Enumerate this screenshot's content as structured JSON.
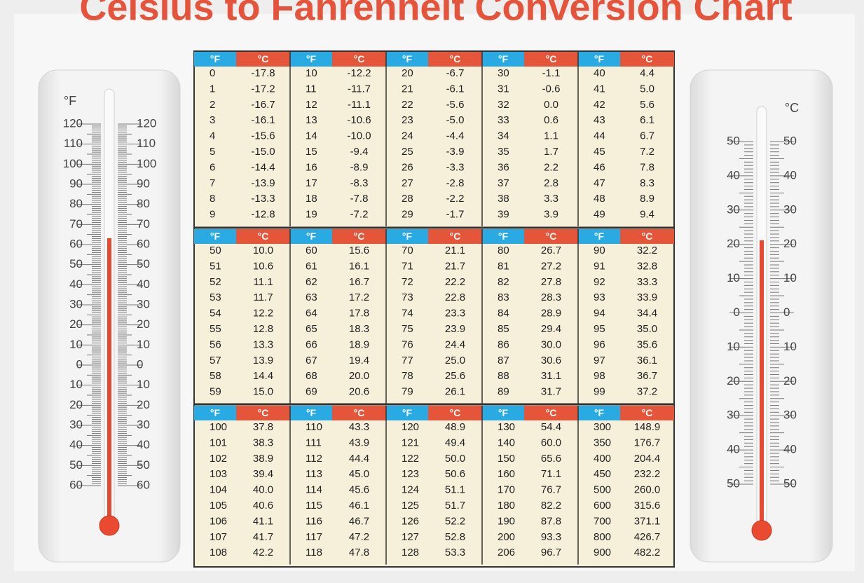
{
  "title": "Celsius to Fahrenheit Conversion Chart",
  "thermometers": {
    "fahrenheit": {
      "unit": "°F",
      "labels": [
        "120",
        "110",
        "100",
        "90",
        "80",
        "70",
        "60",
        "50",
        "40",
        "30",
        "20",
        "10",
        "0",
        "10",
        "20",
        "30",
        "40",
        "50",
        "60"
      ]
    },
    "celsius": {
      "unit": "°C",
      "labels": [
        "50",
        "40",
        "30",
        "20",
        "10",
        "0",
        "10",
        "20",
        "30",
        "40",
        "50"
      ]
    }
  },
  "table": {
    "header_f": "°F",
    "header_c": "°C",
    "sections": [
      {
        "groups": [
          {
            "rows": [
              [
                "0",
                "-17.8"
              ],
              [
                "1",
                "-17.2"
              ],
              [
                "2",
                "-16.7"
              ],
              [
                "3",
                "-16.1"
              ],
              [
                "4",
                "-15.6"
              ],
              [
                "5",
                "-15.0"
              ],
              [
                "6",
                "-14.4"
              ],
              [
                "7",
                "-13.9"
              ],
              [
                "8",
                "-13.3"
              ],
              [
                "9",
                "-12.8"
              ]
            ]
          },
          {
            "rows": [
              [
                "10",
                "-12.2"
              ],
              [
                "11",
                "-11.7"
              ],
              [
                "12",
                "-11.1"
              ],
              [
                "13",
                "-10.6"
              ],
              [
                "14",
                "-10.0"
              ],
              [
                "15",
                "-9.4"
              ],
              [
                "16",
                "-8.9"
              ],
              [
                "17",
                "-8.3"
              ],
              [
                "18",
                "-7.8"
              ],
              [
                "19",
                "-7.2"
              ]
            ]
          },
          {
            "rows": [
              [
                "20",
                "-6.7"
              ],
              [
                "21",
                "-6.1"
              ],
              [
                "22",
                "-5.6"
              ],
              [
                "23",
                "-5.0"
              ],
              [
                "24",
                "-4.4"
              ],
              [
                "25",
                "-3.9"
              ],
              [
                "26",
                "-3.3"
              ],
              [
                "27",
                "-2.8"
              ],
              [
                "28",
                "-2.2"
              ],
              [
                "29",
                "-1.7"
              ]
            ]
          },
          {
            "rows": [
              [
                "30",
                "-1.1"
              ],
              [
                "31",
                "-0.6"
              ],
              [
                "32",
                "0.0"
              ],
              [
                "33",
                "0.6"
              ],
              [
                "34",
                "1.1"
              ],
              [
                "35",
                "1.7"
              ],
              [
                "36",
                "2.2"
              ],
              [
                "37",
                "2.8"
              ],
              [
                "38",
                "3.3"
              ],
              [
                "39",
                "3.9"
              ]
            ]
          },
          {
            "rows": [
              [
                "40",
                "4.4"
              ],
              [
                "41",
                "5.0"
              ],
              [
                "42",
                "5.6"
              ],
              [
                "43",
                "6.1"
              ],
              [
                "44",
                "6.7"
              ],
              [
                "45",
                "7.2"
              ],
              [
                "46",
                "7.8"
              ],
              [
                "47",
                "8.3"
              ],
              [
                "48",
                "8.9"
              ],
              [
                "49",
                "9.4"
              ]
            ]
          }
        ]
      },
      {
        "groups": [
          {
            "rows": [
              [
                "50",
                "10.0"
              ],
              [
                "51",
                "10.6"
              ],
              [
                "52",
                "11.1"
              ],
              [
                "53",
                "11.7"
              ],
              [
                "54",
                "12.2"
              ],
              [
                "55",
                "12.8"
              ],
              [
                "56",
                "13.3"
              ],
              [
                "57",
                "13.9"
              ],
              [
                "58",
                "14.4"
              ],
              [
                "59",
                "15.0"
              ]
            ]
          },
          {
            "rows": [
              [
                "60",
                "15.6"
              ],
              [
                "61",
                "16.1"
              ],
              [
                "62",
                "16.7"
              ],
              [
                "63",
                "17.2"
              ],
              [
                "64",
                "17.8"
              ],
              [
                "65",
                "18.3"
              ],
              [
                "66",
                "18.9"
              ],
              [
                "67",
                "19.4"
              ],
              [
                "68",
                "20.0"
              ],
              [
                "69",
                "20.6"
              ]
            ]
          },
          {
            "rows": [
              [
                "70",
                "21.1"
              ],
              [
                "71",
                "21.7"
              ],
              [
                "72",
                "22.2"
              ],
              [
                "73",
                "22.8"
              ],
              [
                "74",
                "23.3"
              ],
              [
                "75",
                "23.9"
              ],
              [
                "76",
                "24.4"
              ],
              [
                "77",
                "25.0"
              ],
              [
                "78",
                "25.6"
              ],
              [
                "79",
                "26.1"
              ]
            ]
          },
          {
            "rows": [
              [
                "80",
                "26.7"
              ],
              [
                "81",
                "27.2"
              ],
              [
                "82",
                "27.8"
              ],
              [
                "83",
                "28.3"
              ],
              [
                "84",
                "28.9"
              ],
              [
                "85",
                "29.4"
              ],
              [
                "86",
                "30.0"
              ],
              [
                "87",
                "30.6"
              ],
              [
                "88",
                "31.1"
              ],
              [
                "89",
                "31.7"
              ]
            ]
          },
          {
            "rows": [
              [
                "90",
                "32.2"
              ],
              [
                "91",
                "32.8"
              ],
              [
                "92",
                "33.3"
              ],
              [
                "93",
                "33.9"
              ],
              [
                "94",
                "34.4"
              ],
              [
                "95",
                "35.0"
              ],
              [
                "96",
                "35.6"
              ],
              [
                "97",
                "36.1"
              ],
              [
                "98",
                "36.7"
              ],
              [
                "99",
                "37.2"
              ]
            ]
          }
        ]
      },
      {
        "groups": [
          {
            "rows": [
              [
                "100",
                "37.8"
              ],
              [
                "101",
                "38.3"
              ],
              [
                "102",
                "38.9"
              ],
              [
                "103",
                "39.4"
              ],
              [
                "104",
                "40.0"
              ],
              [
                "105",
                "40.6"
              ],
              [
                "106",
                "41.1"
              ],
              [
                "107",
                "41.7"
              ],
              [
                "108",
                "42.2"
              ]
            ]
          },
          {
            "rows": [
              [
                "110",
                "43.3"
              ],
              [
                "111",
                "43.9"
              ],
              [
                "112",
                "44.4"
              ],
              [
                "113",
                "45.0"
              ],
              [
                "114",
                "45.6"
              ],
              [
                "115",
                "46.1"
              ],
              [
                "116",
                "46.7"
              ],
              [
                "117",
                "47.2"
              ],
              [
                "118",
                "47.8"
              ]
            ]
          },
          {
            "rows": [
              [
                "120",
                "48.9"
              ],
              [
                "121",
                "49.4"
              ],
              [
                "122",
                "50.0"
              ],
              [
                "123",
                "50.6"
              ],
              [
                "124",
                "51.1"
              ],
              [
                "125",
                "51.7"
              ],
              [
                "126",
                "52.2"
              ],
              [
                "127",
                "52.8"
              ],
              [
                "128",
                "53.3"
              ]
            ]
          },
          {
            "rows": [
              [
                "130",
                "54.4"
              ],
              [
                "140",
                "60.0"
              ],
              [
                "150",
                "65.6"
              ],
              [
                "160",
                "71.1"
              ],
              [
                "170",
                "76.7"
              ],
              [
                "180",
                "82.2"
              ],
              [
                "190",
                "87.8"
              ],
              [
                "200",
                "93.3"
              ],
              [
                "206",
                "96.7"
              ]
            ]
          },
          {
            "rows": [
              [
                "300",
                "148.9"
              ],
              [
                "350",
                "176.7"
              ],
              [
                "400",
                "204.4"
              ],
              [
                "450",
                "232.2"
              ],
              [
                "500",
                "260.0"
              ],
              [
                "600",
                "315.6"
              ],
              [
                "700",
                "371.1"
              ],
              [
                "800",
                "426.7"
              ],
              [
                "900",
                "482.2"
              ]
            ]
          }
        ]
      }
    ]
  }
}
